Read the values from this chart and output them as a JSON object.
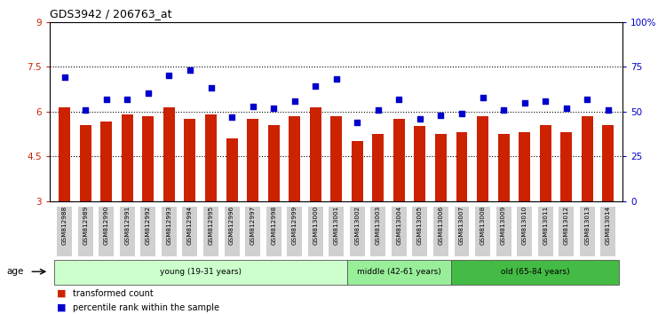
{
  "title": "GDS3942 / 206763_at",
  "samples": [
    "GSM812988",
    "GSM812989",
    "GSM812990",
    "GSM812991",
    "GSM812992",
    "GSM812993",
    "GSM812994",
    "GSM812995",
    "GSM812996",
    "GSM812997",
    "GSM812998",
    "GSM812999",
    "GSM813000",
    "GSM813001",
    "GSM813002",
    "GSM813003",
    "GSM813004",
    "GSM813005",
    "GSM813006",
    "GSM813007",
    "GSM813008",
    "GSM813009",
    "GSM813010",
    "GSM813011",
    "GSM813012",
    "GSM813013",
    "GSM813014"
  ],
  "bar_values": [
    6.15,
    5.55,
    5.65,
    5.9,
    5.85,
    6.15,
    5.75,
    5.9,
    5.1,
    5.75,
    5.55,
    5.85,
    6.15,
    5.85,
    5.0,
    5.25,
    5.75,
    5.5,
    5.25,
    5.3,
    5.85,
    5.25,
    5.3,
    5.55,
    5.3,
    5.85,
    5.55
  ],
  "blue_values": [
    69,
    51,
    57,
    57,
    60,
    70,
    73,
    63,
    47,
    53,
    52,
    56,
    64,
    68,
    44,
    51,
    57,
    46,
    48,
    49,
    58,
    51,
    55,
    56,
    52,
    57,
    51
  ],
  "bar_color": "#cc2200",
  "blue_color": "#0000cc",
  "ylim_left": [
    3,
    9
  ],
  "ylim_right": [
    0,
    100
  ],
  "yticks_left": [
    3,
    4.5,
    6,
    7.5,
    9
  ],
  "yticks_right": [
    0,
    25,
    50,
    75,
    100
  ],
  "ytick_labels_right": [
    "0",
    "25",
    "50",
    "75",
    "100%"
  ],
  "groups": [
    {
      "label": "young (19-31 years)",
      "start": 0,
      "end": 14,
      "color": "#ccffcc"
    },
    {
      "label": "middle (42-61 years)",
      "start": 14,
      "end": 19,
      "color": "#99ee99"
    },
    {
      "label": "old (65-84 years)",
      "start": 19,
      "end": 27,
      "color": "#44bb44"
    }
  ],
  "legend_items": [
    {
      "label": "transformed count",
      "color": "#cc2200"
    },
    {
      "label": "percentile rank within the sample",
      "color": "#0000cc"
    }
  ],
  "age_label": "age",
  "background_color": "#ffffff",
  "dotted_line_color": "#000000",
  "bar_width": 0.55,
  "xtick_bg": "#d0d0d0"
}
